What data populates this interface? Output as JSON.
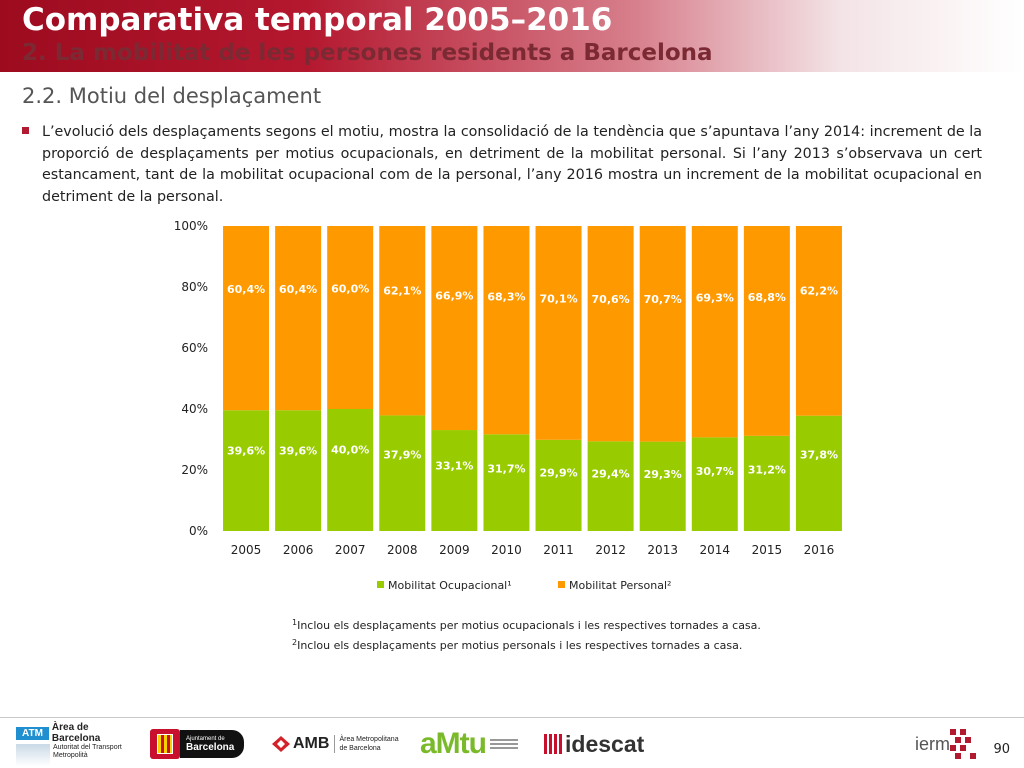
{
  "header": {
    "title": "Comparativa temporal 2005–2016",
    "subtitle": "2. La mobilitat de les persones residents a Barcelona"
  },
  "section_title": "2.2. Motiu del desplaçament",
  "paragraph": "L’evolució dels desplaçaments segons el motiu, mostra la consolidació de la tendència que s’apuntava l’any 2014: increment de la proporció de desplaçaments per motius ocupacionals, en detriment de la mobilitat personal. Si l’any 2013 s’observava un cert estancament, tant de la mobilitat ocupacional com de la personal, l’any 2016 mostra un increment de la mobilitat ocupacional en detriment de la personal.",
  "notes": {
    "note1_mark": "1",
    "note1": "Inclou els desplaçaments per motius ocupacionals i les respectives tornades a casa.",
    "note2_mark": "2",
    "note2": "Inclou els desplaçaments per motius personals i les respectives tornades a casa."
  },
  "footer": {
    "atm_badge": "ATM",
    "atm_name": "Àrea de Barcelona",
    "atm_sub1": "Autoritat del Transport",
    "atm_sub2": "Metropolità",
    "ajuntament_top": "Ajuntament de",
    "ajuntament_name": "Barcelona",
    "amb_name": "AMB",
    "amb_sub1": "Àrea Metropolitana",
    "amb_sub2": "de Barcelona",
    "amtu_name": "aMtu",
    "idescat_name": "idescat",
    "iermb_name": "ierm",
    "page_number": "90"
  },
  "colors": {
    "ocupacional": "#99cc00",
    "personal": "#ff9900",
    "accent": "#b21a2f"
  },
  "chart_data": {
    "type": "bar",
    "stacked": true,
    "categories": [
      "2005",
      "2006",
      "2007",
      "2008",
      "2009",
      "2010",
      "2011",
      "2012",
      "2013",
      "2014",
      "2015",
      "2016"
    ],
    "series": [
      {
        "name": "Mobilitat Ocupacional¹",
        "values": [
          39.6,
          39.6,
          40.0,
          37.9,
          33.1,
          31.7,
          29.9,
          29.4,
          29.3,
          30.7,
          31.2,
          37.8
        ],
        "labels": [
          "39,6%",
          "39,6%",
          "40,0%",
          "37,9%",
          "33,1%",
          "31,7%",
          "29,9%",
          "29,4%",
          "29,3%",
          "30,7%",
          "31,2%",
          "37,8%"
        ]
      },
      {
        "name": "Mobilitat Personal²",
        "values": [
          60.4,
          60.4,
          60.0,
          62.1,
          66.9,
          68.3,
          70.1,
          70.6,
          70.7,
          69.3,
          68.8,
          62.2
        ],
        "labels": [
          "60,4%",
          "60,4%",
          "60,0%",
          "62,1%",
          "66,9%",
          "68,3%",
          "70,1%",
          "70,6%",
          "70,7%",
          "69,3%",
          "68,8%",
          "62,2%"
        ]
      }
    ],
    "ylim": [
      0,
      100
    ],
    "yticks": [
      "0%",
      "20%",
      "40%",
      "60%",
      "80%",
      "100%"
    ],
    "grid": false,
    "legend_position": "bottom"
  }
}
